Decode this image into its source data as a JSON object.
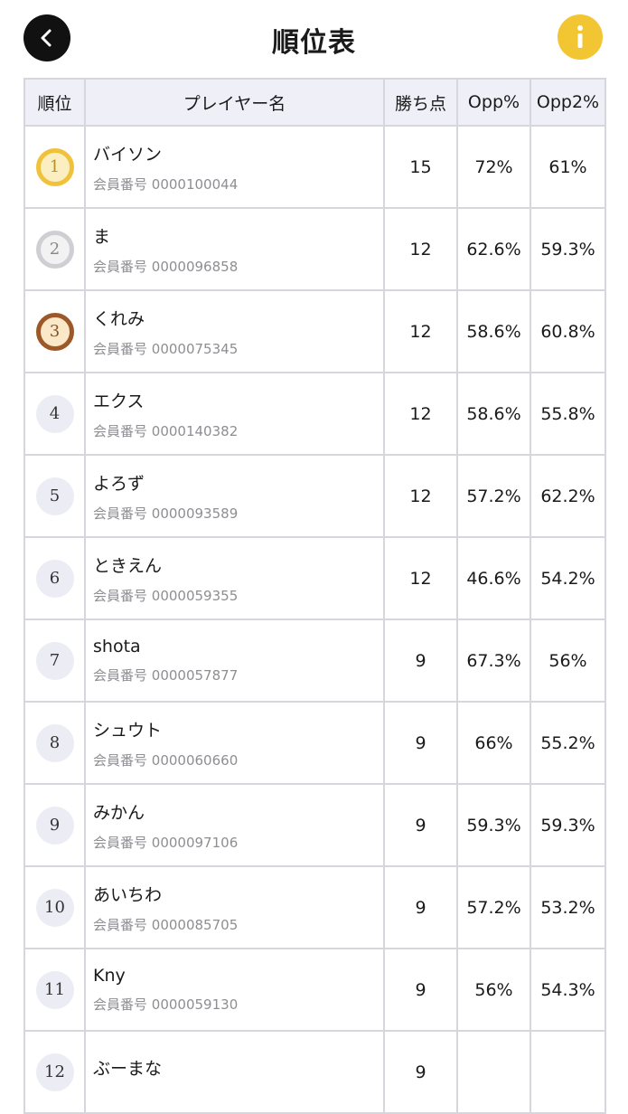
{
  "header": {
    "title": "順位表",
    "back_icon": "chevron-left-icon",
    "info_icon": "info-icon",
    "info_glyph": "i",
    "accent_color": "#f2c533"
  },
  "table": {
    "columns": [
      "順位",
      "プレイヤー名",
      "勝ち点",
      "Opp%",
      "Opp2%"
    ],
    "member_prefix": "会員番号",
    "rows": [
      {
        "rank": "1",
        "name": "バイソン",
        "member_id": "0000100044",
        "points": "15",
        "opp": "72%",
        "opp2": "61%",
        "medal": "gold"
      },
      {
        "rank": "2",
        "name": "ま",
        "member_id": "0000096858",
        "points": "12",
        "opp": "62.6%",
        "opp2": "59.3%",
        "medal": "silver"
      },
      {
        "rank": "3",
        "name": "くれみ",
        "member_id": "0000075345",
        "points": "12",
        "opp": "58.6%",
        "opp2": "60.8%",
        "medal": "bronze"
      },
      {
        "rank": "4",
        "name": "エクス",
        "member_id": "0000140382",
        "points": "12",
        "opp": "58.6%",
        "opp2": "55.8%",
        "medal": "none"
      },
      {
        "rank": "5",
        "name": "よろず",
        "member_id": "0000093589",
        "points": "12",
        "opp": "57.2%",
        "opp2": "62.2%",
        "medal": "none"
      },
      {
        "rank": "6",
        "name": "ときえん",
        "member_id": "0000059355",
        "points": "12",
        "opp": "46.6%",
        "opp2": "54.2%",
        "medal": "none"
      },
      {
        "rank": "7",
        "name": "shota",
        "member_id": "0000057877",
        "points": "9",
        "opp": "67.3%",
        "opp2": "56%",
        "medal": "none"
      },
      {
        "rank": "8",
        "name": "シュウト",
        "member_id": "0000060660",
        "points": "9",
        "opp": "66%",
        "opp2": "55.2%",
        "medal": "none"
      },
      {
        "rank": "9",
        "name": "みかん",
        "member_id": "0000097106",
        "points": "9",
        "opp": "59.3%",
        "opp2": "59.3%",
        "medal": "none"
      },
      {
        "rank": "10",
        "name": "あいちわ",
        "member_id": "0000085705",
        "points": "9",
        "opp": "57.2%",
        "opp2": "53.2%",
        "medal": "none"
      },
      {
        "rank": "11",
        "name": "Kny",
        "member_id": "0000059130",
        "points": "9",
        "opp": "56%",
        "opp2": "54.3%",
        "medal": "none"
      },
      {
        "rank": "12",
        "name": "ぶーまな",
        "member_id": "",
        "points": "9",
        "opp": "",
        "opp2": "",
        "medal": "none"
      }
    ]
  }
}
